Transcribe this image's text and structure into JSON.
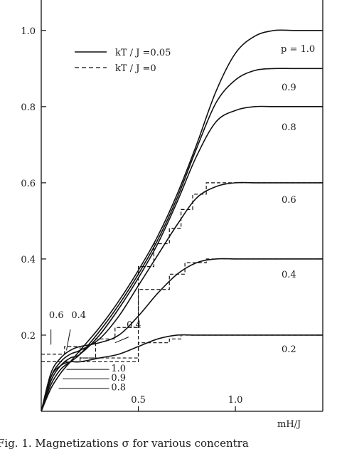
{
  "chart_data": {
    "type": "line",
    "xlabel": "mH/J",
    "ylabel": "",
    "xlim": [
      0,
      1.45
    ],
    "ylim": [
      0,
      1.08
    ],
    "x_ticks": [
      {
        "value": 0.5,
        "label": "0.5"
      },
      {
        "value": 1.0,
        "label": "1.0"
      }
    ],
    "y_ticks": [
      {
        "value": 0.2,
        "label": "0.2"
      },
      {
        "value": 0.4,
        "label": "0.4"
      },
      {
        "value": 0.6,
        "label": "0.6"
      },
      {
        "value": 0.8,
        "label": "0.8"
      },
      {
        "value": 1.0,
        "label": "1.0"
      }
    ],
    "legend": [
      {
        "label": "kT / J =0.05",
        "style": "solid"
      },
      {
        "label": "kT / J =0",
        "style": "dashed"
      }
    ],
    "legend_position": "top-left",
    "series": [
      {
        "p_label": "p = 1.0",
        "style": "solid",
        "start": 0.0,
        "plateau": 1.0,
        "mid": 0.82,
        "width": 0.12,
        "x": [
          0,
          0.05,
          0.1,
          0.15,
          0.2,
          0.3,
          0.4,
          0.5,
          0.6,
          0.7,
          0.8,
          0.9,
          1.0,
          1.1,
          1.2,
          1.3,
          1.45
        ],
        "y": [
          0,
          0.06,
          0.1,
          0.13,
          0.16,
          0.22,
          0.29,
          0.37,
          0.46,
          0.57,
          0.7,
          0.84,
          0.94,
          0.985,
          1.0,
          1.0,
          1.0
        ]
      },
      {
        "p_label": "0.9",
        "style": "solid",
        "x": [
          0,
          0.05,
          0.1,
          0.15,
          0.2,
          0.3,
          0.4,
          0.5,
          0.6,
          0.7,
          0.8,
          0.9,
          1.0,
          1.1,
          1.2,
          1.3,
          1.45
        ],
        "y": [
          0,
          0.07,
          0.11,
          0.13,
          0.15,
          0.21,
          0.28,
          0.36,
          0.45,
          0.56,
          0.69,
          0.81,
          0.87,
          0.895,
          0.9,
          0.9,
          0.9
        ]
      },
      {
        "p_label": "0.8",
        "style": "solid",
        "x": [
          0,
          0.05,
          0.1,
          0.15,
          0.2,
          0.3,
          0.4,
          0.5,
          0.6,
          0.7,
          0.8,
          0.9,
          1.0,
          1.1,
          1.2,
          1.3,
          1.45
        ],
        "y": [
          0,
          0.08,
          0.12,
          0.14,
          0.15,
          0.2,
          0.27,
          0.35,
          0.44,
          0.55,
          0.67,
          0.76,
          0.79,
          0.8,
          0.8,
          0.8,
          0.8
        ]
      },
      {
        "p_label": "0.6",
        "style": "solid",
        "x": [
          0,
          0.05,
          0.1,
          0.15,
          0.2,
          0.3,
          0.4,
          0.5,
          0.6,
          0.7,
          0.8,
          0.9,
          1.0,
          1.1,
          1.2,
          1.3,
          1.45
        ],
        "y": [
          0,
          0.09,
          0.13,
          0.15,
          0.16,
          0.19,
          0.25,
          0.33,
          0.41,
          0.49,
          0.56,
          0.59,
          0.6,
          0.6,
          0.6,
          0.6,
          0.6
        ]
      },
      {
        "p_label": "0.4",
        "style": "solid",
        "x": [
          0,
          0.05,
          0.1,
          0.15,
          0.2,
          0.3,
          0.4,
          0.5,
          0.6,
          0.7,
          0.8,
          0.9,
          1.0,
          1.1,
          1.2,
          1.3,
          1.45
        ],
        "y": [
          0,
          0.1,
          0.14,
          0.16,
          0.17,
          0.18,
          0.2,
          0.25,
          0.31,
          0.36,
          0.39,
          0.4,
          0.4,
          0.4,
          0.4,
          0.4,
          0.4
        ]
      },
      {
        "p_label": "0.2",
        "style": "solid",
        "x": [
          0,
          0.05,
          0.1,
          0.15,
          0.2,
          0.3,
          0.4,
          0.5,
          0.6,
          0.7,
          0.8,
          0.9,
          1.0,
          1.1,
          1.2,
          1.3,
          1.45
        ],
        "y": [
          0,
          0.09,
          0.12,
          0.13,
          0.13,
          0.14,
          0.15,
          0.17,
          0.19,
          0.2,
          0.2,
          0.2,
          0.2,
          0.2,
          0.2,
          0.2,
          0.2
        ]
      },
      {
        "p_label": "",
        "style": "dashed",
        "x": [
          0,
          0.12,
          0.12,
          0.2,
          0.2,
          0.28,
          0.28,
          0.38,
          0.38,
          0.5,
          0.5,
          0.58,
          0.58,
          0.66,
          0.66,
          0.72,
          0.72,
          0.78,
          0.78,
          0.85,
          0.85,
          1.45
        ],
        "y": [
          0.15,
          0.15,
          0.17,
          0.17,
          0.14,
          0.14,
          0.19,
          0.19,
          0.22,
          0.22,
          0.38,
          0.38,
          0.44,
          0.44,
          0.48,
          0.48,
          0.53,
          0.53,
          0.57,
          0.57,
          0.6,
          0.6
        ]
      },
      {
        "p_label": "",
        "style": "dashed",
        "x": [
          0,
          0.2,
          0.2,
          0.5,
          0.5,
          0.66,
          0.66,
          0.74,
          0.74,
          0.85,
          0.85,
          1.45
        ],
        "y": [
          0.13,
          0.13,
          0.14,
          0.14,
          0.32,
          0.32,
          0.36,
          0.36,
          0.39,
          0.39,
          0.4,
          0.4
        ]
      },
      {
        "p_label": "",
        "style": "dashed",
        "x": [
          0,
          0.2,
          0.2,
          0.5,
          0.5,
          0.66,
          0.66,
          0.72,
          0.72,
          1.45
        ],
        "y": [
          0.13,
          0.13,
          0.13,
          0.13,
          0.18,
          0.18,
          0.19,
          0.19,
          0.2,
          0.2
        ]
      }
    ],
    "annotations": [
      {
        "text": "0.6",
        "x": 0.04,
        "y": 0.245
      },
      {
        "text": "0.4",
        "x": 0.155,
        "y": 0.245
      },
      {
        "text": "0.4",
        "x": 0.44,
        "y": 0.22
      },
      {
        "text": "1.0",
        "x": 0.36,
        "y": 0.105
      },
      {
        "text": "0.9",
        "x": 0.36,
        "y": 0.08
      },
      {
        "text": "0.8",
        "x": 0.36,
        "y": 0.055
      }
    ]
  },
  "caption": "Fig. 1.  Magnetizations  σ for various concentra"
}
